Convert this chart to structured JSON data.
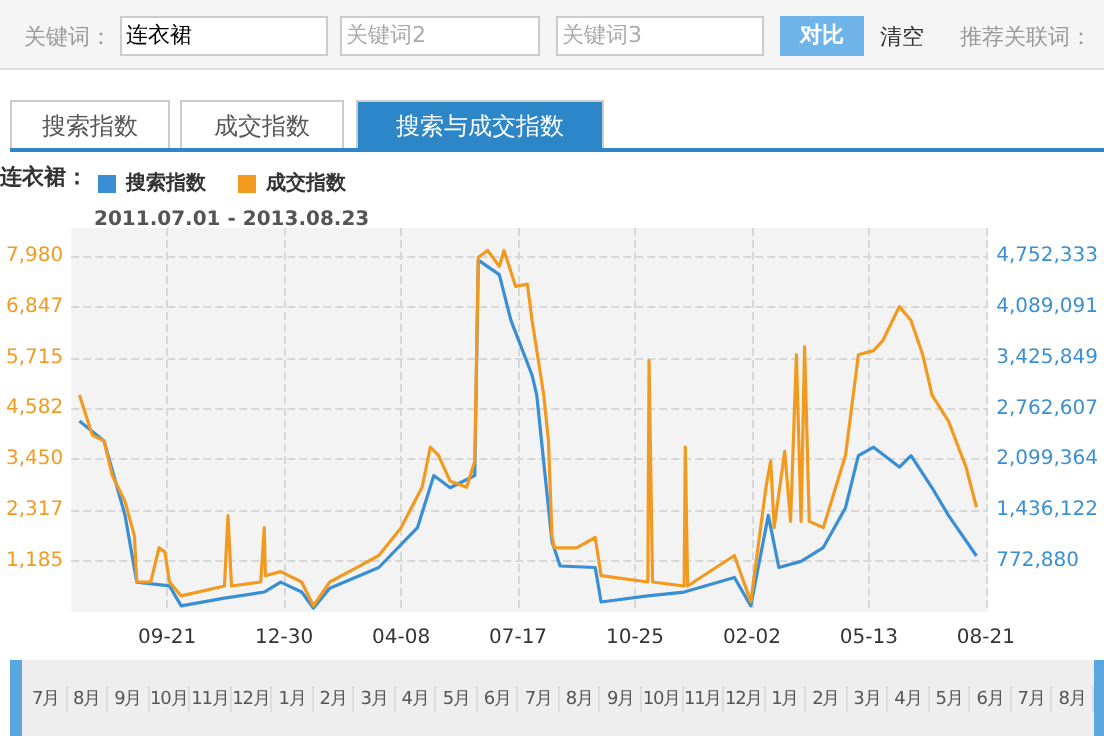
{
  "chart_data": {
    "type": "line",
    "subtitle": "2011.07.01 - 2013.08.23",
    "legend_title": "连衣裙：",
    "legend": "top left",
    "grid": true,
    "line_style": "solid",
    "marker": "none",
    "xlim": [
      "2011-07-01",
      "2013-08-23"
    ],
    "xticks": [
      {
        "value": "2011-09-21",
        "label": "09-21"
      },
      {
        "value": "2011-12-30",
        "label": "12-30"
      },
      {
        "value": "2012-04-08",
        "label": "04-08"
      },
      {
        "value": "2012-07-17",
        "label": "07-17"
      },
      {
        "value": "2012-10-25",
        "label": "10-25"
      },
      {
        "value": "2013-02-02",
        "label": "02-02"
      },
      {
        "value": "2013-05-13",
        "label": "05-13"
      },
      {
        "value": "2013-08-21",
        "label": "08-21"
      }
    ],
    "ylim": [
      52,
      8600
    ],
    "yticks": [
      {
        "value": 1185,
        "label": "1,185"
      },
      {
        "value": 2317,
        "label": "2,317"
      },
      {
        "value": 3450,
        "label": "3,450"
      },
      {
        "value": 4582,
        "label": "4,582"
      },
      {
        "value": 5715,
        "label": "5,715"
      },
      {
        "value": 6847,
        "label": "6,847"
      },
      {
        "value": 7980,
        "label": "7,980"
      }
    ],
    "y2lim": [
      109638,
      5119000
    ],
    "y2ticks": [
      {
        "value": 772880,
        "label": "772,880"
      },
      {
        "value": 1436122,
        "label": "1,436,122"
      },
      {
        "value": 2099364,
        "label": "2,099,364"
      },
      {
        "value": 2762607,
        "label": "2,762,607"
      },
      {
        "value": 3425849,
        "label": "3,425,849"
      },
      {
        "value": 4089091,
        "label": "4,089,091"
      },
      {
        "value": 4752333,
        "label": "4,752,333"
      }
    ],
    "series": [
      {
        "name": "搜索指数",
        "color": "#3a8fd4",
        "axis": "y2",
        "x": [
          "2011-07-08",
          "2011-07-29",
          "2011-08-16",
          "2011-08-26",
          "2011-09-23",
          "2011-10-03",
          "2011-11-09",
          "2011-12-13",
          "2011-12-27",
          "2012-01-14",
          "2012-01-24",
          "2012-02-07",
          "2012-03-20",
          "2012-04-22",
          "2012-05-06",
          "2012-05-20",
          "2012-06-10",
          "2012-06-13",
          "2012-07-01",
          "2012-07-11",
          "2012-07-29",
          "2012-08-02",
          "2012-08-15",
          "2012-08-22",
          "2012-09-21",
          "2012-09-26",
          "2012-11-05",
          "2012-12-06",
          "2013-01-18",
          "2013-02-01",
          "2013-02-16",
          "2013-02-25",
          "2013-03-16",
          "2013-04-04",
          "2013-04-23",
          "2013-05-04",
          "2013-05-17",
          "2013-06-08",
          "2013-06-18",
          "2013-07-06",
          "2013-07-20",
          "2013-08-13"
        ],
        "values": [
          2600000,
          2340000,
          1370000,
          500000,
          450000,
          190000,
          290000,
          370000,
          500000,
          370000,
          160000,
          420000,
          690000,
          1210000,
          1890000,
          1730000,
          1890000,
          4700000,
          4510000,
          3910000,
          3200000,
          2940000,
          1030000,
          710000,
          690000,
          240000,
          320000,
          370000,
          560000,
          190000,
          1370000,
          690000,
          770000,
          950000,
          1470000,
          2150000,
          2260000,
          2000000,
          2150000,
          1730000,
          1370000,
          840000
        ]
      },
      {
        "name": "成交指数",
        "color": "#f29a1f",
        "x": [
          "2011-07-08",
          "2011-07-19",
          "2011-07-29",
          "2011-08-05",
          "2011-08-16",
          "2011-08-24",
          "2011-08-26",
          "2011-09-07",
          "2011-09-14",
          "2011-09-19",
          "2011-09-23",
          "2011-10-03",
          "2011-11-09",
          "2011-11-12",
          "2011-11-15",
          "2011-12-10",
          "2011-12-13",
          "2011-12-14",
          "2011-12-27",
          "2012-01-14",
          "2012-01-24",
          "2012-02-07",
          "2012-03-01",
          "2012-03-20",
          "2012-04-08",
          "2012-04-26",
          "2012-05-03",
          "2012-05-10",
          "2012-05-20",
          "2012-06-03",
          "2012-06-10",
          "2012-06-13",
          "2012-06-21",
          "2012-07-01",
          "2012-07-05",
          "2012-07-15",
          "2012-07-25",
          "2012-07-29",
          "2012-08-08",
          "2012-08-12",
          "2012-08-15",
          "2012-08-17",
          "2012-09-05",
          "2012-09-21",
          "2012-09-26",
          "2012-11-05",
          "2012-11-06",
          "2012-11-09",
          "2012-12-06",
          "2012-12-07",
          "2012-12-09",
          "2013-01-18",
          "2013-02-01",
          "2013-02-14",
          "2013-02-18",
          "2013-02-21",
          "2013-03-02",
          "2013-03-07",
          "2013-03-12",
          "2013-03-16",
          "2013-03-19",
          "2013-03-23",
          "2013-04-04",
          "2013-04-23",
          "2013-05-04",
          "2013-05-17",
          "2013-05-25",
          "2013-06-08",
          "2013-06-18",
          "2013-06-28",
          "2013-07-06",
          "2013-07-20",
          "2013-08-04",
          "2013-08-13"
        ],
        "values": [
          4880,
          3990,
          3860,
          3100,
          2510,
          1750,
          720,
          720,
          1480,
          1390,
          720,
          410,
          630,
          2200,
          630,
          720,
          1930,
          860,
          950,
          720,
          190,
          720,
          1040,
          1310,
          1930,
          2830,
          3720,
          3540,
          2960,
          2830,
          3410,
          7950,
          8100,
          7750,
          8100,
          7300,
          7350,
          6540,
          4880,
          3860,
          1750,
          1480,
          1480,
          1710,
          860,
          720,
          5650,
          720,
          630,
          3720,
          630,
          1310,
          280,
          2830,
          3410,
          1930,
          3630,
          2070,
          5780,
          2070,
          5960,
          2070,
          1930,
          3540,
          5780,
          5870,
          6100,
          6850,
          6540,
          5780,
          4880,
          4300,
          3280,
          2380
        ]
      }
    ],
    "annotations": [
      "关键词：",
      "连衣裙",
      "关键词2",
      "关键词3",
      "对比",
      "清空",
      "推荐关联词：",
      "搜索指数",
      "成交指数",
      "搜索与成交指数",
      "7月",
      "8月",
      "9月",
      "10月",
      "11月",
      "12月",
      "1月",
      "2月",
      "3月",
      "4月",
      "5月",
      "6月",
      "7月",
      "8月",
      "9月",
      "10月",
      "11月",
      "12月",
      "1月",
      "2月",
      "3月",
      "4月",
      "5月",
      "6月",
      "7月",
      "8月"
    ]
  }
}
